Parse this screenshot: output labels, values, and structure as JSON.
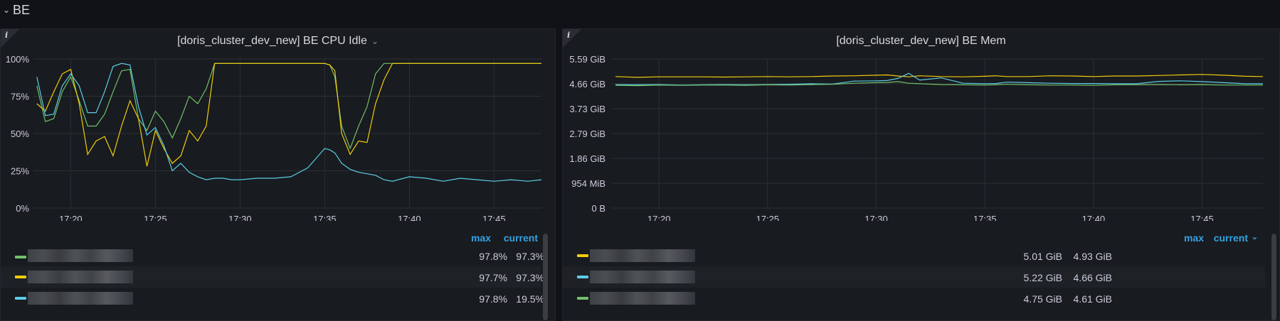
{
  "row": {
    "title": "BE"
  },
  "panels": [
    {
      "title": "[doris_cluster_dev_new] BE CPU Idle",
      "legend_headers": [
        "max",
        "current"
      ],
      "legend": [
        {
          "color": "#73bf69",
          "max": "97.8%",
          "current": "97.3%"
        },
        {
          "color": "#f2cc0c",
          "max": "97.7%",
          "current": "97.3%"
        },
        {
          "color": "#5ccde6",
          "max": "97.8%",
          "current": "19.5%"
        }
      ]
    },
    {
      "title": "[doris_cluster_dev_new] BE Mem",
      "legend_headers": [
        "max",
        "current"
      ],
      "legend": [
        {
          "color": "#f2cc0c",
          "max": "5.01 GiB",
          "current": "4.93 GiB"
        },
        {
          "color": "#5ccde6",
          "max": "5.22 GiB",
          "current": "4.66 GiB"
        },
        {
          "color": "#73bf69",
          "max": "4.75 GiB",
          "current": "4.61 GiB"
        }
      ]
    }
  ],
  "chart_data": [
    {
      "type": "line",
      "x_ticks": [
        "17:20",
        "17:25",
        "17:30",
        "17:35",
        "17:40",
        "17:45"
      ],
      "y_ticks": [
        "0%",
        "25%",
        "50%",
        "75%",
        "100%"
      ],
      "ylim": [
        0,
        100
      ],
      "x_range_minutes": [
        17.8,
        47.8
      ],
      "series": [
        {
          "color": "#73bf69",
          "x": [
            18,
            18.5,
            19,
            19.5,
            20,
            20.5,
            21,
            21.5,
            22,
            22.5,
            23,
            23.5,
            24,
            24.5,
            25,
            25.5,
            26,
            26.5,
            27,
            27.5,
            28,
            28.5,
            29,
            29.5,
            30,
            31,
            32,
            33,
            34,
            35,
            35.3,
            35.6,
            36,
            36.5,
            37,
            37.5,
            38,
            38.5,
            39,
            40,
            41,
            42,
            43,
            44,
            45,
            46,
            47,
            47.8
          ],
          "y": [
            82,
            58,
            60,
            78,
            88,
            72,
            55,
            55,
            63,
            78,
            92,
            93,
            60,
            52,
            65,
            58,
            47,
            60,
            75,
            70,
            80,
            97,
            97,
            97,
            97,
            97,
            97,
            97,
            97,
            97,
            96,
            88,
            55,
            40,
            55,
            68,
            90,
            97,
            97,
            97,
            97,
            97,
            97,
            97,
            97,
            97,
            97,
            97
          ]
        },
        {
          "color": "#f2cc0c",
          "x": [
            18,
            18.5,
            19,
            19.5,
            20,
            20.5,
            21,
            21.5,
            22,
            22.5,
            23,
            23.5,
            24,
            24.5,
            25,
            25.5,
            26,
            26.5,
            27,
            27.5,
            28,
            28.5,
            29,
            29.5,
            30,
            31,
            32,
            33,
            34,
            35,
            35.3,
            35.6,
            36,
            36.5,
            37,
            37.5,
            38,
            38.5,
            39,
            40,
            41,
            42,
            43,
            44,
            45,
            46,
            47,
            47.8
          ],
          "y": [
            70,
            65,
            78,
            90,
            93,
            70,
            36,
            45,
            48,
            35,
            55,
            72,
            60,
            28,
            52,
            40,
            30,
            35,
            52,
            45,
            55,
            97,
            97,
            97,
            97,
            97,
            97,
            97,
            97,
            97,
            96,
            92,
            50,
            36,
            45,
            44,
            70,
            86,
            97,
            97,
            97,
            97,
            97,
            97,
            97,
            97,
            97,
            97
          ]
        },
        {
          "color": "#5ccde6",
          "x": [
            18,
            18.5,
            19,
            19.5,
            20,
            20.5,
            21,
            21.5,
            22,
            22.5,
            23,
            23.5,
            24,
            24.5,
            25,
            25.5,
            26,
            26.5,
            27,
            27.5,
            28,
            28.5,
            29,
            29.5,
            30,
            31,
            32,
            33,
            34,
            35,
            35.3,
            35.6,
            36,
            36.5,
            37,
            37.5,
            38,
            38.5,
            39,
            40,
            41,
            42,
            43,
            44,
            45,
            46,
            47,
            47.8
          ],
          "y": [
            88,
            62,
            63,
            82,
            90,
            82,
            64,
            64,
            78,
            95,
            97,
            96,
            68,
            49,
            54,
            42,
            25,
            30,
            24,
            21,
            19,
            20,
            20,
            19,
            19,
            20,
            20,
            21,
            27,
            40,
            39,
            37,
            30,
            26,
            24,
            23,
            22,
            19,
            18,
            21,
            20,
            18,
            20,
            19,
            18,
            19,
            18,
            19
          ]
        }
      ]
    },
    {
      "type": "line",
      "x_ticks": [
        "17:20",
        "17:25",
        "17:30",
        "17:35",
        "17:40",
        "17:45"
      ],
      "y_ticks": [
        "0 B",
        "954 MiB",
        "1.86 GiB",
        "2.79 GiB",
        "3.73 GiB",
        "4.66 GiB",
        "5.59 GiB"
      ],
      "ylim": [
        0,
        5.59
      ],
      "x_range_minutes": [
        17.8,
        47.8
      ],
      "series": [
        {
          "color": "#f2cc0c",
          "x": [
            18,
            19,
            20,
            21,
            22,
            23,
            24,
            25,
            26,
            27,
            28,
            29,
            30,
            30.5,
            31,
            31.5,
            32,
            33,
            34,
            35,
            35.5,
            36,
            37,
            38,
            39,
            40,
            41,
            42,
            43,
            44,
            45,
            46,
            47,
            47.8
          ],
          "y": [
            4.93,
            4.9,
            4.92,
            4.92,
            4.92,
            4.91,
            4.92,
            4.93,
            4.92,
            4.93,
            4.95,
            4.96,
            4.98,
            4.99,
            4.95,
            4.92,
            4.96,
            4.93,
            4.92,
            4.94,
            4.96,
            4.93,
            4.93,
            4.96,
            4.95,
            4.93,
            4.95,
            4.95,
            4.97,
            4.99,
            5.01,
            4.98,
            4.94,
            4.93
          ]
        },
        {
          "color": "#5ccde6",
          "x": [
            18,
            19,
            20,
            21,
            22,
            23,
            24,
            25,
            26,
            27,
            28,
            29,
            30,
            30.5,
            31,
            31.5,
            32,
            33,
            34,
            35,
            35.5,
            36,
            37,
            38,
            39,
            40,
            41,
            42,
            43,
            44,
            45,
            46,
            47,
            47.8
          ],
          "y": [
            4.63,
            4.62,
            4.63,
            4.61,
            4.62,
            4.63,
            4.62,
            4.63,
            4.64,
            4.66,
            4.65,
            4.76,
            4.77,
            4.78,
            4.86,
            5.05,
            4.8,
            4.88,
            4.68,
            4.66,
            4.67,
            4.72,
            4.7,
            4.68,
            4.67,
            4.67,
            4.66,
            4.66,
            4.75,
            4.77,
            4.74,
            4.7,
            4.66,
            4.66
          ]
        },
        {
          "color": "#73bf69",
          "x": [
            18,
            19,
            20,
            21,
            22,
            23,
            24,
            25,
            26,
            27,
            28,
            29,
            30,
            30.5,
            31,
            31.5,
            32,
            33,
            34,
            35,
            35.5,
            36,
            37,
            38,
            39,
            40,
            41,
            42,
            43,
            44,
            45,
            46,
            47,
            47.8
          ],
          "y": [
            4.6,
            4.59,
            4.61,
            4.6,
            4.61,
            4.61,
            4.6,
            4.62,
            4.61,
            4.63,
            4.64,
            4.68,
            4.7,
            4.71,
            4.74,
            4.68,
            4.66,
            4.63,
            4.62,
            4.61,
            4.62,
            4.64,
            4.62,
            4.61,
            4.61,
            4.6,
            4.62,
            4.62,
            4.63,
            4.62,
            4.63,
            4.61,
            4.61,
            4.61
          ]
        }
      ]
    }
  ]
}
